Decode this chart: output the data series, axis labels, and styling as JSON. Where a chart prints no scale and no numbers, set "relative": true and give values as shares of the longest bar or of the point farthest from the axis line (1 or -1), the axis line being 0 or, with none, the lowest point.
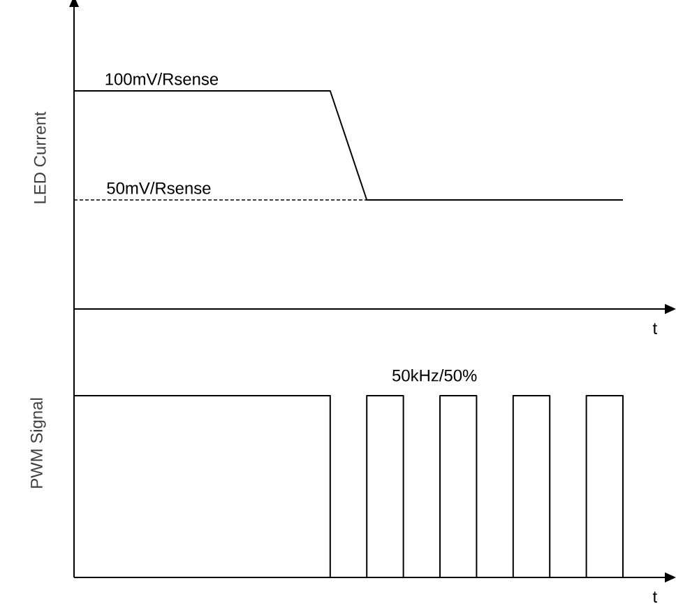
{
  "chart_data": [
    {
      "type": "line",
      "ylabel": "LED Current",
      "xlabel": "t",
      "relative": true,
      "marker": "none",
      "line_style": "solid",
      "categories": [
        null,
        null,
        null,
        null,
        null,
        null,
        null,
        null,
        null,
        null,
        null,
        null,
        null,
        null,
        null,
        null,
        null
      ],
      "series": [
        {
          "color": "#000000",
          "values": [
            1,
            1,
            1,
            1,
            1,
            1,
            1,
            1,
            0.5,
            0.5,
            0.5,
            0.5,
            0.5,
            0.5,
            0.5,
            0.5,
            null
          ]
        }
      ],
      "ref_lines": [
        {
          "axis": "y",
          "value": 0.5,
          "label": "50mV/Rsense",
          "line_style": "dashed",
          "color": "#000000"
        }
      ],
      "annotations": [
        {
          "text": "100mV/Rsense",
          "y": 1
        }
      ]
    },
    {
      "type": "step",
      "ylabel": "PWM Signal",
      "xlabel": "t",
      "relative": true,
      "marker": "none",
      "line_style": "solid",
      "categories": [
        null,
        null,
        null,
        null,
        null,
        null,
        null,
        null,
        null,
        null,
        null,
        null,
        null,
        null,
        null,
        null,
        null
      ],
      "series": [
        {
          "color": "#000000",
          "values": [
            1,
            1,
            1,
            1,
            1,
            1,
            1,
            0,
            1,
            0,
            1,
            0,
            1,
            0,
            1,
            0,
            0
          ]
        }
      ],
      "annotations": [
        {
          "text": "50kHz/50%",
          "y": 1
        }
      ]
    }
  ]
}
